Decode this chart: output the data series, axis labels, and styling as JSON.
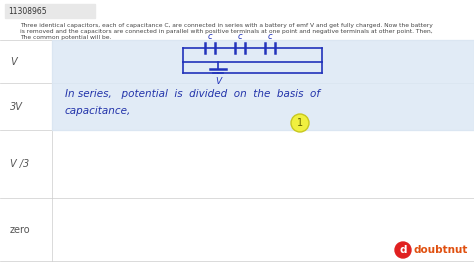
{
  "bg_color": "#f0f0f0",
  "page_bg": "#f8f8f8",
  "question_id": "11308965",
  "question_text_line1": "Three identical capacitors, each of capacitance C, are connected in series with a battery of emf V and get fully charged. Now the battery",
  "question_text_line2": "is removed and the capacitors are connected in parallel with positive terminals at one point and negative terminals at other point. Then,",
  "question_text_line3": "The common potential will be.",
  "options": [
    "V",
    "3V",
    "V /3",
    "zero"
  ],
  "handwritten_line1": "In series,   potential  is  divided  on  the  basis  of",
  "handwritten_line2": "capacitance,",
  "circuit_color": "#2233bb",
  "text_color": "#444444",
  "header_bg": "#e8e8e8",
  "highlight_circle_color": "#f0f040",
  "highlight_circle_border": "#c8c820",
  "watermark_text": "doubtnut",
  "answer_box_bg": "#dce8f5",
  "line_color": "#cccccc",
  "option_label_color": "#555555",
  "hw_color": "#2233aa"
}
